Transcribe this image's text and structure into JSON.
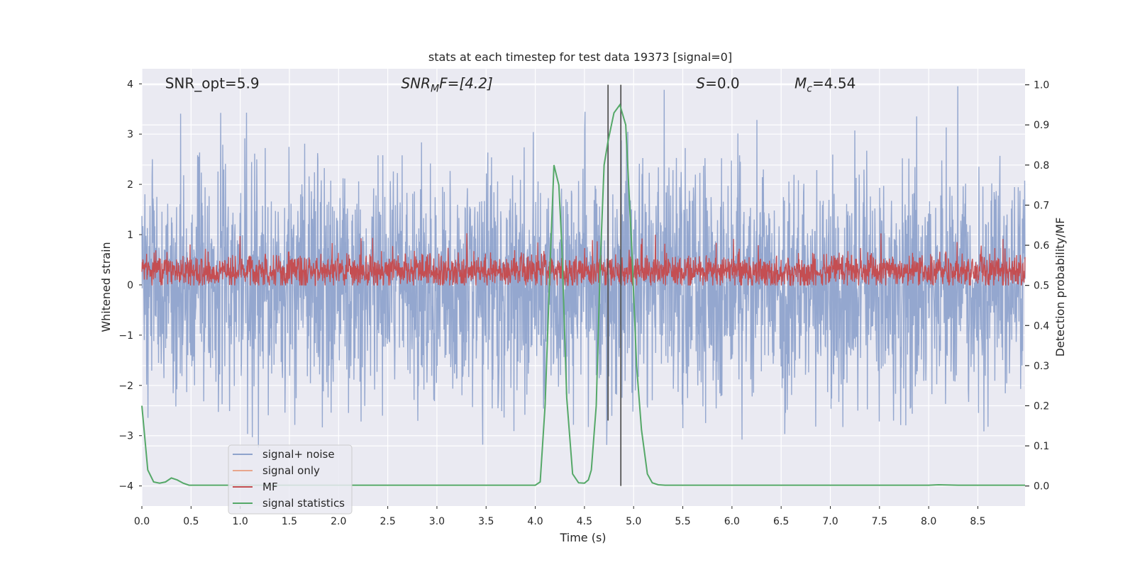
{
  "chart_data": {
    "type": "line",
    "title": "stats at each timestep for test data 19373 [signal=0]",
    "xlabel": "Time (s)",
    "ylabel_left": "Whitened strain",
    "ylabel_right": "Detection probability/MF",
    "xlim": [
      0,
      8.98
    ],
    "ylim_left": [
      -4.4,
      4.3
    ],
    "ylim_right": [
      -0.05,
      1.04
    ],
    "x_ticks": [
      0.0,
      0.5,
      1.0,
      1.5,
      2.0,
      2.5,
      3.0,
      3.5,
      4.0,
      4.5,
      5.0,
      5.5,
      6.0,
      6.5,
      7.0,
      7.5,
      8.0,
      8.5
    ],
    "x_tick_labels": [
      "0.0",
      "0.5",
      "1.0",
      "1.5",
      "2.0",
      "2.5",
      "3.0",
      "3.5",
      "4.0",
      "4.5",
      "5.0",
      "5.5",
      "6.0",
      "6.5",
      "7.0",
      "7.5",
      "8.0",
      "8.5"
    ],
    "y_left_ticks": [
      -4,
      -3,
      -2,
      -1,
      0,
      1,
      2,
      3,
      4
    ],
    "y_left_tick_labels": [
      "−4",
      "−3",
      "−2",
      "−1",
      "0",
      "1",
      "2",
      "3",
      "4"
    ],
    "y_right_ticks": [
      0.0,
      0.1,
      0.2,
      0.3,
      0.4,
      0.5,
      0.6,
      0.7,
      0.8,
      0.9,
      1.0
    ],
    "y_right_tick_labels": [
      "0.0",
      "0.1",
      "0.2",
      "0.3",
      "0.4",
      "0.5",
      "0.6",
      "0.7",
      "0.8",
      "0.9",
      "1.0"
    ],
    "annotations": [
      {
        "pre": "SNR_opt=5.9",
        "sub": "",
        "post": "",
        "x": 0.2
      },
      {
        "pre": "SNR",
        "sub": "M",
        "post": "F=[4.2]",
        "x": 2.6
      },
      {
        "pre": "S",
        "sub": "",
        "post": "=0.0",
        "x": 5.6
      },
      {
        "pre": "M",
        "sub": "c",
        "post": "=4.54",
        "x": 6.6
      }
    ],
    "annotation_y_left": 4.0,
    "vertical_markers": [
      {
        "x": 4.74,
        "y_top_right": 1.0,
        "y_bottom_left": -2.7,
        "color": "#555555"
      },
      {
        "x": 4.87,
        "y_top_right": 1.0,
        "y_bottom_left": -4.0,
        "color": "#555555"
      }
    ],
    "series": [
      {
        "name": "signal+ noise",
        "color": "#8fa3cc",
        "axis": "left",
        "kind": "noise",
        "amplitude": 1.25,
        "seed": 19373
      },
      {
        "name": "signal only",
        "color": "#e8a68c",
        "axis": "left",
        "kind": "empty"
      },
      {
        "name": "MF",
        "color": "#c44e52",
        "axis": "right",
        "kind": "noise",
        "center": 0.535,
        "amplitude": 0.022,
        "seed": 4242
      },
      {
        "name": "signal statistics",
        "color": "#55a868",
        "axis": "right",
        "kind": "line",
        "x": [
          0.0,
          0.06,
          0.12,
          0.18,
          0.24,
          0.3,
          0.36,
          0.42,
          0.48,
          0.55,
          1.0,
          2.0,
          3.0,
          3.5,
          3.9,
          4.0,
          4.05,
          4.1,
          4.15,
          4.19,
          4.24,
          4.27,
          4.32,
          4.38,
          4.44,
          4.5,
          4.54,
          4.57,
          4.62,
          4.66,
          4.7,
          4.74,
          4.8,
          4.86,
          4.92,
          4.98,
          5.03,
          5.08,
          5.14,
          5.19,
          5.25,
          5.32,
          5.6,
          6.0,
          7.0,
          8.0,
          8.1,
          8.3,
          8.98
        ],
        "y": [
          0.2,
          0.04,
          0.01,
          0.007,
          0.01,
          0.02,
          0.015,
          0.007,
          0.002,
          0.002,
          0.002,
          0.002,
          0.002,
          0.002,
          0.002,
          0.002,
          0.01,
          0.2,
          0.55,
          0.8,
          0.75,
          0.6,
          0.22,
          0.03,
          0.008,
          0.007,
          0.015,
          0.04,
          0.2,
          0.55,
          0.8,
          0.86,
          0.93,
          0.95,
          0.9,
          0.6,
          0.3,
          0.14,
          0.03,
          0.008,
          0.003,
          0.002,
          0.002,
          0.002,
          0.002,
          0.002,
          0.003,
          0.002,
          0.002
        ]
      }
    ]
  }
}
